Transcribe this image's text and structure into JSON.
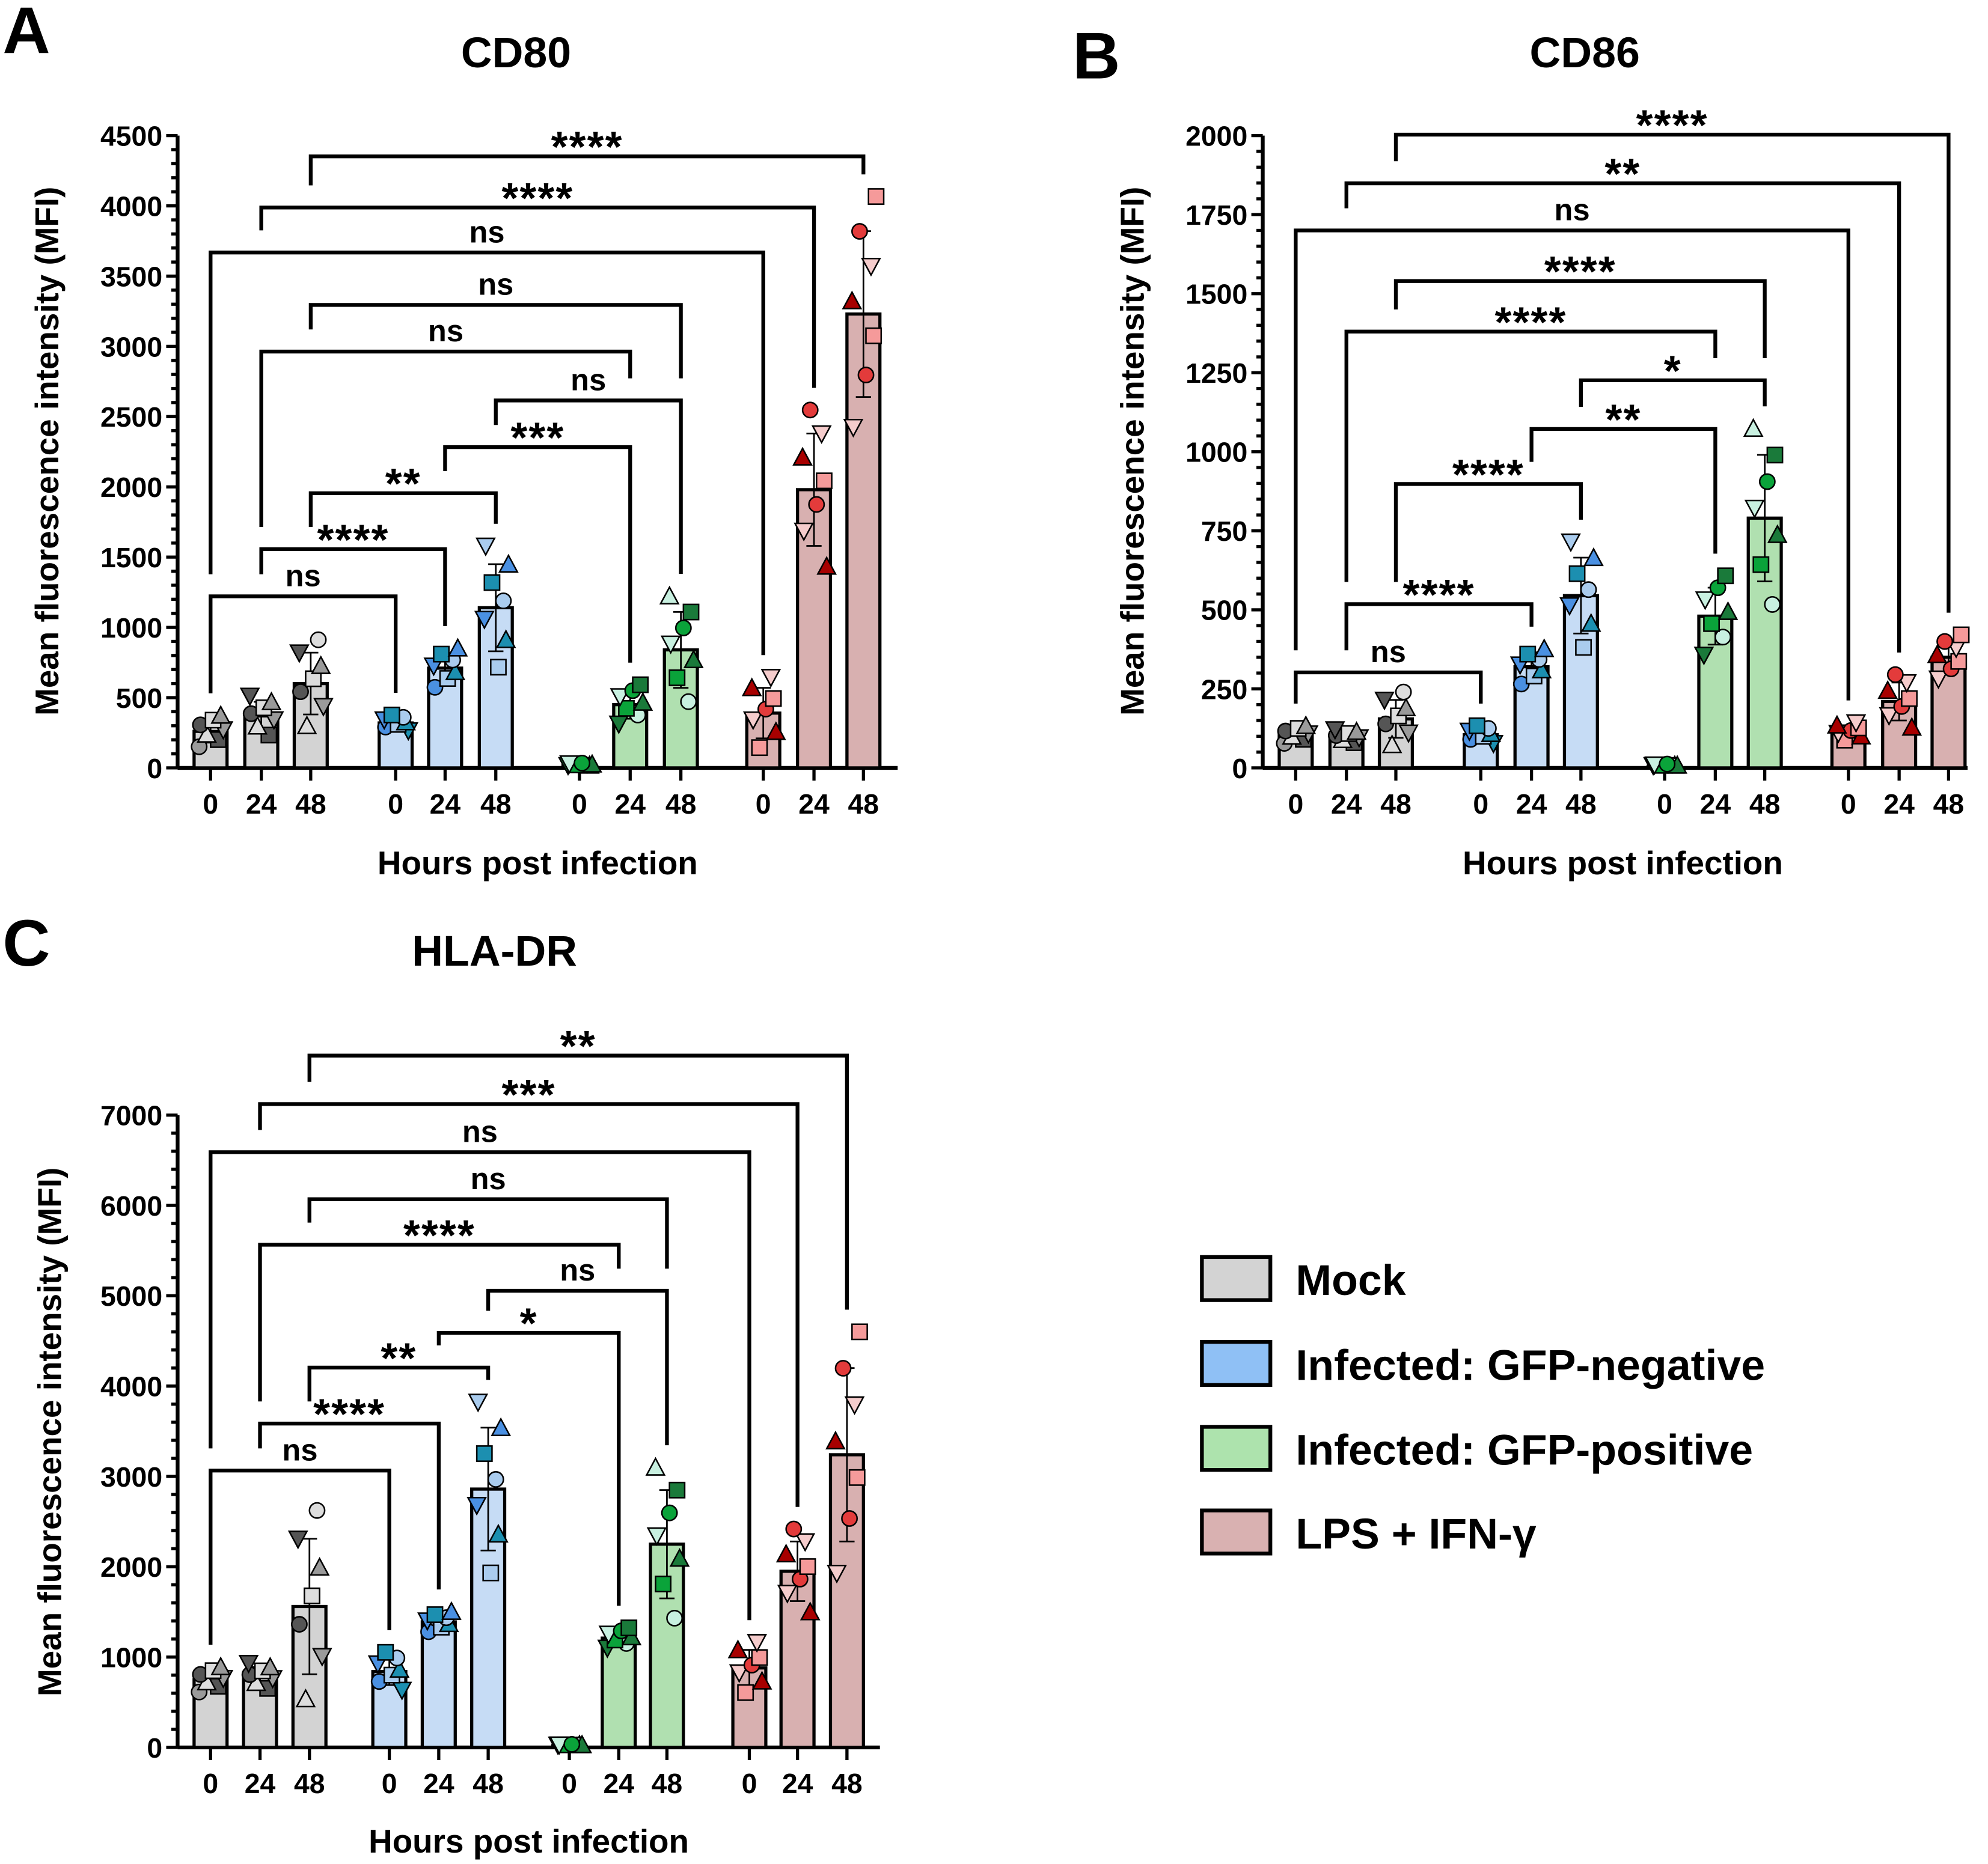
{
  "legend": [
    {
      "label": "Mock",
      "color": "#d3d3d3"
    },
    {
      "label": "Infected: GFP-negative",
      "color": "#8fc0f5"
    },
    {
      "label": "Infected: GFP-positive",
      "color": "#ade3ad"
    },
    {
      "label": "LPS + IFN-γ",
      "color": "#d9b1b1"
    }
  ],
  "bar_colors": [
    "#d3d3d3",
    "#c6dcf5",
    "#b0e0b0",
    "#d8b0b0"
  ],
  "point_colors": [
    [
      "#9a9a9a",
      "#555555",
      "#dddddd"
    ],
    [
      "#1c8fb0",
      "#4a90e2",
      "#aaccee"
    ],
    [
      "#0aa33a",
      "#1a7a3a",
      "#c8f0e0"
    ],
    [
      "#e33b3b",
      "#f59a9a",
      "#a80000",
      "#f5cccc"
    ]
  ],
  "chart_data": [
    {
      "type": "bar",
      "panel": "A",
      "title": "CD80",
      "ylabel": "Mean fluorescence intensity (MFI)",
      "xlabel": "Hours post infection",
      "ylim": [
        0,
        4500
      ],
      "yticks": [
        0,
        500,
        1000,
        1500,
        2000,
        2500,
        3000,
        3500,
        4000,
        4500
      ],
      "groups": [
        "Mock",
        "Infected: GFP-negative",
        "Infected: GFP-positive",
        "LPS + IFN-γ"
      ],
      "categories": [
        "0",
        "24",
        "48",
        "0",
        "24",
        "48",
        "0",
        "24",
        "48",
        "0",
        "24",
        "48"
      ],
      "values": [
        260,
        370,
        600,
        320,
        710,
        1140,
        20,
        450,
        840,
        390,
        1980,
        3230
      ],
      "errors": [
        80,
        100,
        220,
        40,
        100,
        310,
        10,
        100,
        270,
        180,
        400,
        590
      ],
      "comparisons": [
        {
          "from": 0,
          "to": 3,
          "level": 1221,
          "label": "ns"
        },
        {
          "from": 1,
          "to": 4,
          "level": 1557,
          "label": "****"
        },
        {
          "from": 2,
          "to": 5,
          "level": 1955,
          "label": "**"
        },
        {
          "from": 4,
          "to": 7,
          "level": 2283,
          "label": "***"
        },
        {
          "from": 5,
          "to": 8,
          "level": 2615,
          "label": "ns"
        },
        {
          "from": 1,
          "to": 7,
          "level": 2963,
          "label": "ns"
        },
        {
          "from": 2,
          "to": 8,
          "level": 3295,
          "label": "ns"
        },
        {
          "from": 0,
          "to": 9,
          "level": 3668,
          "label": "ns"
        },
        {
          "from": 1,
          "to": 10,
          "level": 3988,
          "label": "****"
        },
        {
          "from": 2,
          "to": 11,
          "level": 4352,
          "label": "****"
        }
      ]
    },
    {
      "type": "bar",
      "panel": "B",
      "title": "CD86",
      "ylabel": "Mean fluorescence intensity (MFI)",
      "xlabel": "Hours post infection",
      "ylim": [
        0,
        2000
      ],
      "yticks": [
        0,
        250,
        500,
        750,
        1000,
        1250,
        1500,
        1750,
        2000
      ],
      "groups": [
        "Mock",
        "Infected: GFP-negative",
        "Infected: GFP-positive",
        "LPS + IFN-γ"
      ],
      "categories": [
        "0",
        "24",
        "48",
        "0",
        "24",
        "48",
        "0",
        "24",
        "48",
        "0",
        "24",
        "48"
      ],
      "values": [
        105,
        100,
        155,
        105,
        320,
        545,
        5,
        480,
        790,
        115,
        210,
        350
      ],
      "errors": [
        20,
        15,
        60,
        20,
        40,
        120,
        5,
        90,
        200,
        20,
        60,
        50
      ],
      "comparisons": [
        {
          "from": 0,
          "to": 3,
          "level": 302,
          "label": "ns"
        },
        {
          "from": 1,
          "to": 4,
          "level": 518,
          "label": "****"
        },
        {
          "from": 2,
          "to": 5,
          "level": 898,
          "label": "****"
        },
        {
          "from": 4,
          "to": 7,
          "level": 1072,
          "label": "**"
        },
        {
          "from": 5,
          "to": 8,
          "level": 1226,
          "label": "*"
        },
        {
          "from": 1,
          "to": 7,
          "level": 1380,
          "label": "****"
        },
        {
          "from": 2,
          "to": 8,
          "level": 1540,
          "label": "****"
        },
        {
          "from": 0,
          "to": 9,
          "level": 1700,
          "label": "ns"
        },
        {
          "from": 1,
          "to": 10,
          "level": 1849,
          "label": "**"
        },
        {
          "from": 2,
          "to": 11,
          "level": 2003,
          "label": "****"
        }
      ]
    },
    {
      "type": "bar",
      "panel": "C",
      "title": "HLA-DR",
      "ylabel": "Mean fluorescence intensity (MFI)",
      "xlabel": "Hours post infection",
      "ylim": [
        0,
        7000
      ],
      "yticks": [
        0,
        1000,
        2000,
        3000,
        4000,
        5000,
        6000,
        7000
      ],
      "groups": [
        "Mock",
        "Infected: GFP-negative",
        "Infected: GFP-positive",
        "LPS + IFN-γ"
      ],
      "categories": [
        "0",
        "24",
        "48",
        "0",
        "24",
        "48",
        "0",
        "24",
        "48",
        "0",
        "24",
        "48"
      ],
      "values": [
        750,
        790,
        1560,
        840,
        1390,
        2860,
        20,
        1210,
        2250,
        880,
        1950,
        3240
      ],
      "errors": [
        100,
        100,
        750,
        150,
        80,
        680,
        10,
        80,
        600,
        200,
        330,
        960
      ],
      "comparisons": [
        {
          "from": 0,
          "to": 3,
          "level": 3065,
          "label": "ns"
        },
        {
          "from": 1,
          "to": 4,
          "level": 3585,
          "label": "****"
        },
        {
          "from": 2,
          "to": 5,
          "level": 4205,
          "label": "**"
        },
        {
          "from": 4,
          "to": 7,
          "level": 4589,
          "label": "*"
        },
        {
          "from": 5,
          "to": 8,
          "level": 5055,
          "label": "ns"
        },
        {
          "from": 1,
          "to": 7,
          "level": 5565,
          "label": "****"
        },
        {
          "from": 2,
          "to": 8,
          "level": 6069,
          "label": "ns"
        },
        {
          "from": 0,
          "to": 9,
          "level": 6590,
          "label": "ns"
        },
        {
          "from": 1,
          "to": 10,
          "level": 7122,
          "label": "***"
        },
        {
          "from": 2,
          "to": 11,
          "level": 7659,
          "label": "**"
        }
      ]
    }
  ]
}
